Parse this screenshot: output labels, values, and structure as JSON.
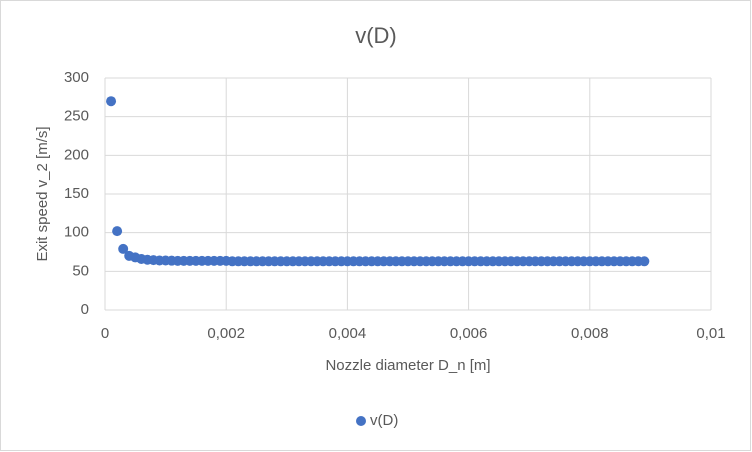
{
  "chart_data": {
    "type": "scatter",
    "title": "v(D)",
    "x_label": "Nozzle diameter D_n [m]",
    "y_label": "Exit speed v_2 [m/s]",
    "x": [
      0.0001,
      0.0002,
      0.0003,
      0.0004,
      0.0005,
      0.0006,
      0.0007,
      0.0008,
      0.0009,
      0.001,
      0.0011,
      0.0012,
      0.0013,
      0.0014,
      0.0015,
      0.0016,
      0.0017,
      0.0018,
      0.0019,
      0.002,
      0.0021,
      0.0022,
      0.0023,
      0.0024,
      0.0025,
      0.0026,
      0.0027,
      0.0028,
      0.0029,
      0.003,
      0.0031,
      0.0032,
      0.0033,
      0.0034,
      0.0035,
      0.0036,
      0.0037,
      0.0038,
      0.0039,
      0.004,
      0.0041,
      0.0042,
      0.0043,
      0.0044,
      0.0045,
      0.0046,
      0.0047,
      0.0048,
      0.0049,
      0.005,
      0.0051,
      0.0052,
      0.0053,
      0.0054,
      0.0055,
      0.0056,
      0.0057,
      0.0058,
      0.0059,
      0.006,
      0.0061,
      0.0062,
      0.0063,
      0.0064,
      0.0065,
      0.0066,
      0.0067,
      0.0068,
      0.0069,
      0.007,
      0.0071,
      0.0072,
      0.0073,
      0.0074,
      0.0075,
      0.0076,
      0.0077,
      0.0078,
      0.0079,
      0.008,
      0.0081,
      0.0082,
      0.0083,
      0.0084,
      0.0085,
      0.0086,
      0.0087,
      0.0088,
      0.0089
    ],
    "series": [
      {
        "name": "v(D)",
        "color": "#4472c4",
        "values": [
          270,
          102,
          79,
          70,
          68,
          66,
          65,
          64.5,
          64,
          64,
          63.8,
          63.6,
          63.5,
          63.5,
          63.5,
          63.5,
          63.5,
          63.5,
          63.5,
          63.5,
          63,
          63,
          63,
          63,
          63,
          63,
          63,
          63,
          63,
          63,
          63,
          63,
          63,
          63,
          63,
          63,
          63,
          63,
          63,
          63,
          63,
          63,
          63,
          63,
          63,
          63,
          63,
          63,
          63,
          63,
          63,
          63,
          63,
          63,
          63,
          63,
          63,
          63,
          63,
          63,
          63,
          63,
          63,
          63,
          63,
          63,
          63,
          63,
          63,
          63,
          63,
          63,
          63,
          63,
          63,
          63,
          63,
          63,
          63,
          63,
          63,
          63,
          63,
          63,
          63,
          63,
          63,
          63,
          63
        ]
      }
    ],
    "xlim": [
      0,
      0.01
    ],
    "xticks": [
      0,
      {
        "value": 0.002,
        "label": "0,002"
      },
      {
        "value": 0.004,
        "label": "0,004"
      },
      {
        "value": 0.006,
        "label": "0,006"
      },
      {
        "value": 0.008,
        "label": "0,008"
      },
      {
        "value": 0.01,
        "label": "0,01"
      }
    ],
    "ylim": [
      0,
      300
    ],
    "yticks": [
      0,
      50,
      100,
      150,
      200,
      250,
      300
    ],
    "grid": true,
    "legend": "bottom"
  }
}
